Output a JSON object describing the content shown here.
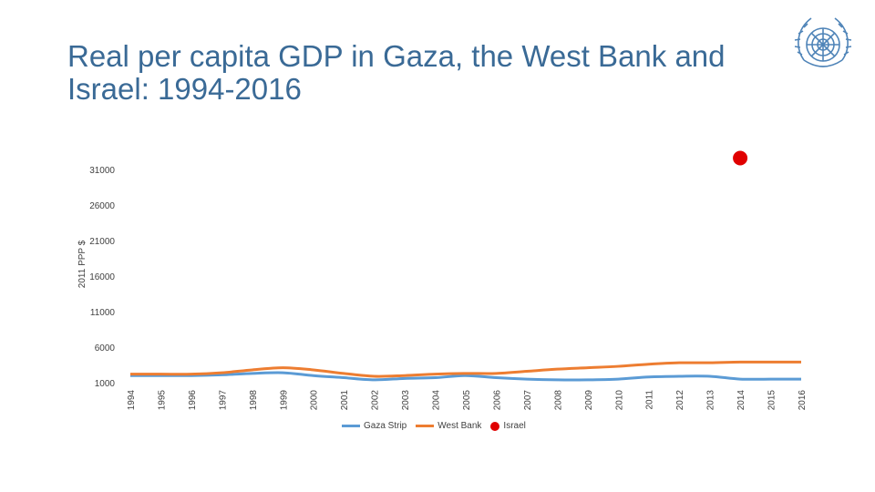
{
  "slide": {
    "title_line1": "Real per capita GDP in Gaza, the West Bank and",
    "title_line2": "Israel: 1994-2016",
    "logo": "un-emblem-icon"
  },
  "colors": {
    "title": "#3a6a96",
    "gaza": "#5b9bd5",
    "westbank": "#ed7d31",
    "israel": "#e00000"
  },
  "chart_data": {
    "type": "line",
    "title": "",
    "xlabel": "",
    "ylabel": "2011 PPP $",
    "x": [
      "1994",
      "1995",
      "1996",
      "1997",
      "1998",
      "1999",
      "2000",
      "2001",
      "2002",
      "2003",
      "2004",
      "2005",
      "2006",
      "2007",
      "2008",
      "2009",
      "2010",
      "2011",
      "2012",
      "2013",
      "2014",
      "2015",
      "2016"
    ],
    "y_ticks": [
      "1000",
      "6000",
      "11000",
      "16000",
      "21000",
      "26000",
      "31000"
    ],
    "ylim": [
      1000,
      31000
    ],
    "grid": false,
    "legend_position": "bottom",
    "series": [
      {
        "name": "Gaza Strip",
        "values": [
          2000,
          2000,
          2000,
          2100,
          2300,
          2400,
          2000,
          1700,
          1400,
          1600,
          1700,
          2000,
          1700,
          1500,
          1400,
          1400,
          1500,
          1800,
          1900,
          1900,
          1500,
          1500,
          1500
        ]
      },
      {
        "name": "West Bank",
        "values": [
          2200,
          2200,
          2200,
          2400,
          2800,
          3100,
          2800,
          2300,
          1900,
          2000,
          2200,
          2300,
          2300,
          2600,
          2900,
          3100,
          3300,
          3600,
          3800,
          3800,
          3900,
          3900,
          3900
        ]
      },
      {
        "name": "Israel",
        "values": [
          null,
          null,
          null,
          null,
          null,
          null,
          null,
          null,
          null,
          null,
          null,
          null,
          null,
          null,
          null,
          null,
          null,
          null,
          null,
          null,
          32600,
          null,
          null
        ]
      }
    ]
  }
}
